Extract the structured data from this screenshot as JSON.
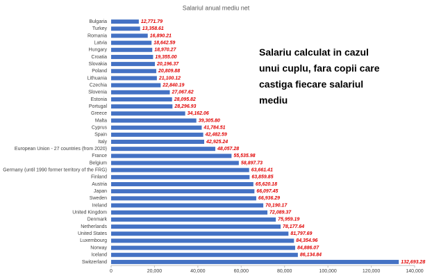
{
  "chart_data": {
    "type": "bar",
    "orientation": "horizontal",
    "title": "Salariul anual mediu net",
    "annotation": [
      "Salariu calculat in cazul",
      "unui cuplu, fara copii care",
      "castiga fiecare salariul",
      "mediu"
    ],
    "categories": [
      "Bulgaria",
      "Turkey",
      "Romania",
      "Latvia",
      "Hungary",
      "Croatia",
      "Slovakia",
      "Poland",
      "Lithuania",
      "Czechia",
      "Slovenia",
      "Estonia",
      "Portugal",
      "Greece",
      "Malta",
      "Cyprus",
      "Spain",
      "Italy",
      "European Union - 27 countries (from 2020)",
      "France",
      "Belgium",
      "Germany (until 1990 former territory of the FRG)",
      "Finland",
      "Austria",
      "Japan",
      "Sweden",
      "Ireland",
      "United Kingdom",
      "Denmark",
      "Netherlands",
      "United States",
      "Luxembourg",
      "Norway",
      "Iceland",
      "Switzerland"
    ],
    "values": [
      12771.79,
      13358.61,
      16890.21,
      18642.59,
      18970.27,
      19355.0,
      20196.37,
      20809.88,
      21100.12,
      22840.19,
      27067.62,
      28095.82,
      28296.93,
      34162.06,
      39305.8,
      41784.51,
      42482.59,
      42925.24,
      48057.28,
      55535.98,
      58897.73,
      63661.41,
      63859.85,
      65620.18,
      66097.45,
      66936.29,
      70190.17,
      72089.37,
      75959.19,
      78177.64,
      81797.69,
      84354.96,
      84886.07,
      86134.84,
      132693.28
    ],
    "value_labels": [
      "12,771.79",
      "13,358.61",
      "16,890.21",
      "18,642.59",
      "18,970.27",
      "19,355.00",
      "20,196.37",
      "20,809.88",
      "21,100.12",
      "22,840.19",
      "27,067.62",
      "28,095.82",
      "28,296.93",
      "34,162.06",
      "39,305.80",
      "41,784.51",
      "42,482.59",
      "42,925.24",
      "48,057.28",
      "55,535.98",
      "58,897.73",
      "63,661.41",
      "63,859.85",
      "65,620.18",
      "66,097.45",
      "66,936.29",
      "70,190.17",
      "72,089.37",
      "75,959.19",
      "78,177.64",
      "81,797.69",
      "84,354.96",
      "84,886.07",
      "86,134.84",
      "132,693.28"
    ],
    "color": "#4472c4",
    "label_color": "#e00000",
    "xlim": [
      0,
      140000
    ],
    "xticks": [
      0,
      {
        "value": 20000,
        "label": "20,000"
      },
      {
        "value": 40000,
        "label": "40,000"
      },
      {
        "value": 60000,
        "label": "60,000"
      },
      {
        "value": 80000,
        "label": "80,000"
      },
      {
        "value": 100000,
        "label": "100,000"
      },
      {
        "value": 120000,
        "label": "120,000"
      },
      {
        "value": 140000,
        "label": "140,000"
      }
    ],
    "grid": false
  }
}
